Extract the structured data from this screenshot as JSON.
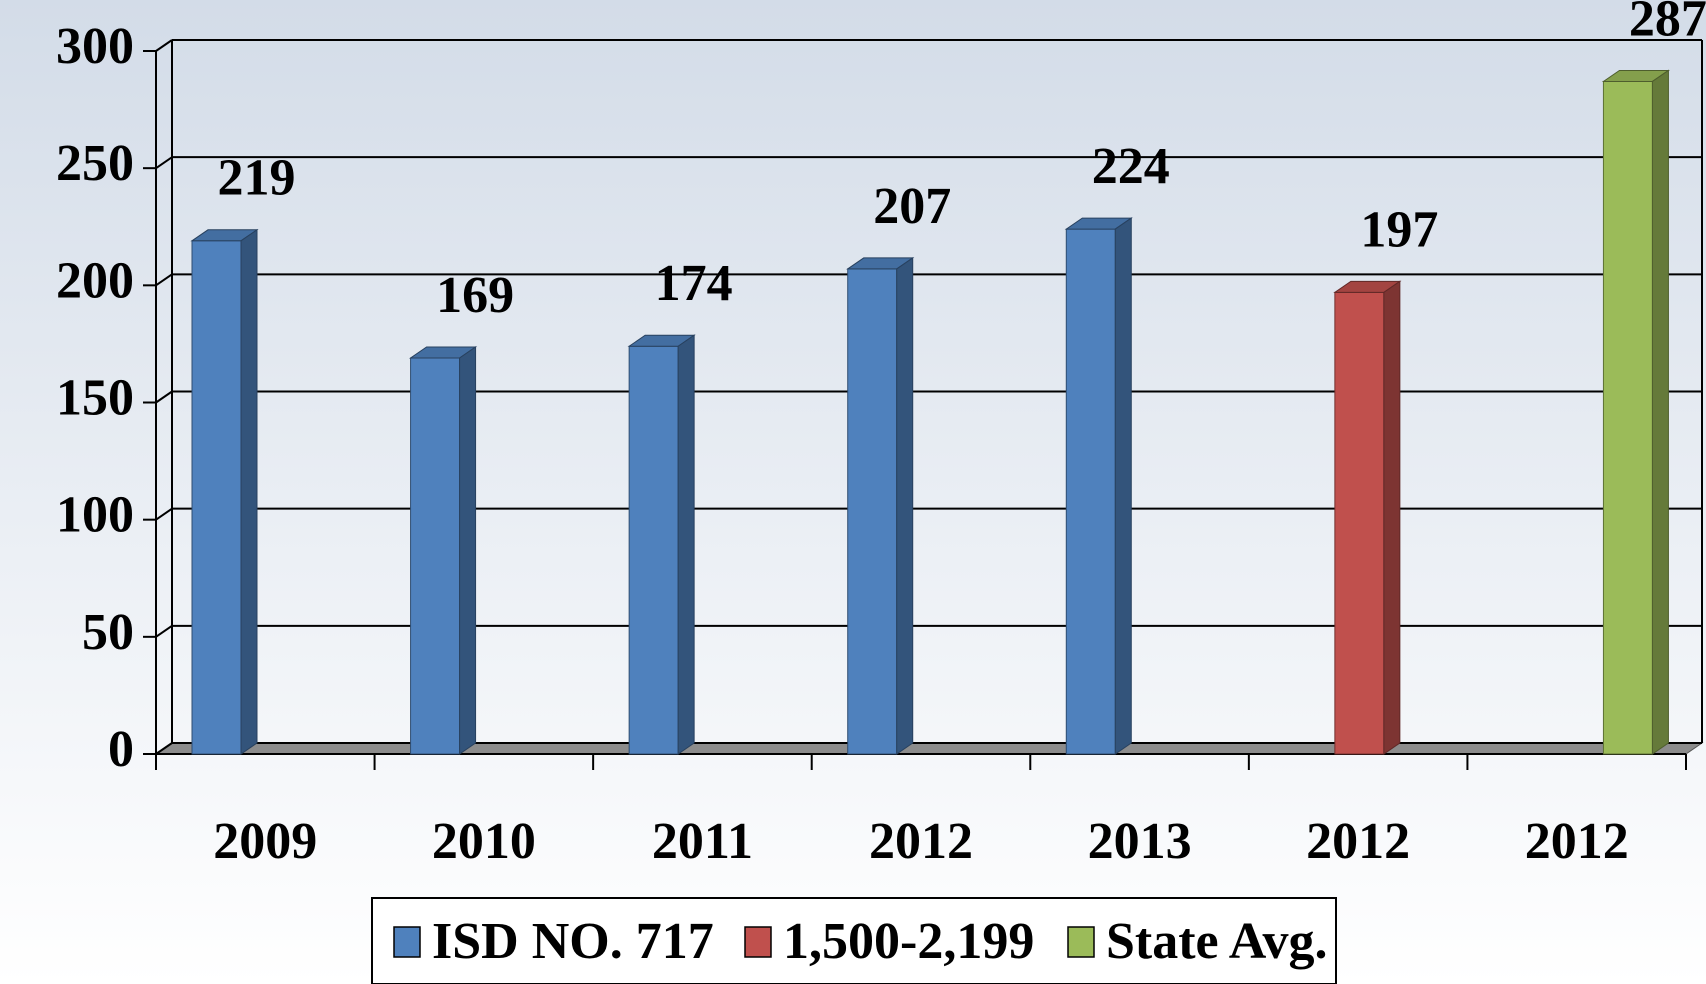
{
  "chart_data": {
    "type": "bar3d",
    "categories": [
      "2009",
      "2010",
      "2011",
      "2012",
      "2013",
      "2012",
      "2012"
    ],
    "series": [
      {
        "name": "ISD NO. 717",
        "color": "#4f81bd",
        "values": [
          219,
          169,
          174,
          207,
          224,
          null,
          null
        ]
      },
      {
        "name": "1,500-2,199",
        "color": "#c0504d",
        "values": [
          null,
          null,
          null,
          null,
          null,
          197,
          null
        ]
      },
      {
        "name": "State Avg.",
        "color": "#9bbb59",
        "values": [
          null,
          null,
          null,
          null,
          null,
          null,
          287
        ]
      }
    ],
    "ylim": [
      0,
      300
    ],
    "yticks": [
      0,
      50,
      100,
      150,
      200,
      250,
      300
    ],
    "grid": true,
    "legend": "bottom"
  }
}
